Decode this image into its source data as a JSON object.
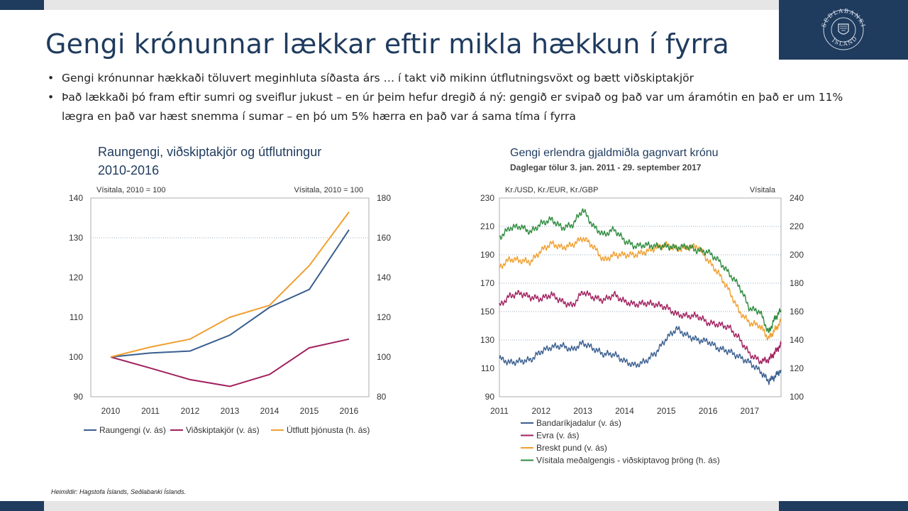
{
  "slide": {
    "title": "Gengi krónunnar lækkar eftir mikla hækkun í fyrra",
    "bullets": [
      "Gengi krónunnar hækkaði töluvert meginhluta síðasta árs … í takt við mikinn útflutningsvöxt og bætt viðskiptakjör",
      "Það lækkaði þó fram eftir sumri og sveiflur jukust – en úr þeim hefur dregið á ný: gengið er svipað og það var um áramótin en það er um 11% lægra en það var hæst snemma í sumar – en þó um 5% hærra en það var á sama tíma í fyrra"
    ],
    "bullet_symbol": "•",
    "source": "Heimildir: Hagstofa Íslands, Seðlabanki Íslands.",
    "logo": {
      "name": "sedlabanki-islands-seal",
      "text_top": "SEÐLABANKI",
      "text_bottom": "ÍSLANDS"
    },
    "colors": {
      "navy": "#1f3b5e",
      "grey_bar": "#e6e6e6"
    }
  },
  "chart_data": [
    {
      "type": "line",
      "title": "Raungengi, viðskiptakjör og útflutningur",
      "subtitle": "2010-2016",
      "ylabel_left": "Vísitala, 2010 = 100",
      "ylabel_right": "Vísitala, 2010 = 100",
      "x": [
        2010,
        2011,
        2012,
        2013,
        2014,
        2015,
        2016
      ],
      "ylim_left": [
        90,
        140
      ],
      "yticks_left": [
        90,
        100,
        110,
        120,
        130,
        140
      ],
      "ylim_right": [
        80,
        180
      ],
      "yticks_right": [
        80,
        100,
        120,
        140,
        160,
        180
      ],
      "series": [
        {
          "name": "Raungengi (v. ás)",
          "axis": "left",
          "color": "#3a5f8f",
          "values": [
            100,
            101,
            101.5,
            105.5,
            112.5,
            117,
            132
          ]
        },
        {
          "name": "Viðskiptakjör (v. ás)",
          "axis": "left",
          "color": "#a0205f",
          "values": [
            100,
            97.2,
            94.3,
            92.6,
            95.6,
            102.3,
            104.5
          ]
        },
        {
          "name": "Útflutt þjónusta (h. ás)",
          "axis": "right",
          "color": "#f0a030",
          "values": [
            100,
            105,
            109,
            120,
            126,
            146,
            173
          ]
        }
      ],
      "legend_position": "bottom",
      "grid": "dotted at 130 (left axis) / 160 (right axis)"
    },
    {
      "type": "line",
      "title": "Gengi erlendra gjaldmiðla gagnvart krónu",
      "subtitle": "Daglegar tölur 3. jan. 2011 - 29. september 2017",
      "ylabel_left": "Kr./USD, Kr./EUR, Kr./GBP",
      "ylabel_right": "Vísitala",
      "x_ticks": [
        "2011",
        "2012",
        "2013",
        "2014",
        "2015",
        "2016",
        "2017"
      ],
      "xlim": [
        2011,
        2017.75
      ],
      "ylim_left": [
        90,
        230
      ],
      "yticks_left": [
        90,
        110,
        130,
        150,
        170,
        190,
        210,
        230
      ],
      "ylim_right": [
        100,
        240
      ],
      "yticks_right": [
        100,
        120,
        140,
        160,
        180,
        200,
        220,
        240
      ],
      "series": [
        {
          "name": "Bandaríkjadalur (v. ás)",
          "axis": "left",
          "color": "#3a5f8f",
          "x": [
            2011,
            2011.25,
            2011.5,
            2011.75,
            2012,
            2012.25,
            2012.5,
            2012.75,
            2013,
            2013.25,
            2013.5,
            2013.75,
            2014,
            2014.25,
            2014.5,
            2014.75,
            2015,
            2015.25,
            2015.5,
            2015.75,
            2016,
            2016.25,
            2016.5,
            2016.75,
            2017,
            2017.25,
            2017.45,
            2017.6,
            2017.75
          ],
          "values": [
            117,
            114,
            115,
            116,
            122,
            125,
            126,
            123,
            128,
            124,
            120,
            120,
            115,
            112,
            115,
            121,
            131,
            138,
            133,
            130,
            129,
            124,
            122,
            118,
            114,
            108,
            101,
            104,
            109
          ]
        },
        {
          "name": "Evra (v. ás)",
          "axis": "left",
          "color": "#a0205f",
          "x": [
            2011,
            2011.25,
            2011.5,
            2011.75,
            2012,
            2012.25,
            2012.5,
            2012.75,
            2013,
            2013.25,
            2013.5,
            2013.75,
            2014,
            2014.25,
            2014.5,
            2014.75,
            2015,
            2015.25,
            2015.5,
            2015.75,
            2016,
            2016.25,
            2016.5,
            2016.75,
            2017,
            2017.25,
            2017.45,
            2017.6,
            2017.75
          ],
          "values": [
            154,
            161,
            163,
            160,
            159,
            162,
            157,
            154,
            164,
            160,
            158,
            162,
            157,
            155,
            156,
            155,
            153,
            148,
            147,
            147,
            142,
            141,
            139,
            131,
            120,
            115,
            116,
            121,
            127
          ]
        },
        {
          "name": "Breskt pund (v. ás)",
          "axis": "left",
          "color": "#f0a030",
          "x": [
            2011,
            2011.25,
            2011.5,
            2011.75,
            2012,
            2012.25,
            2012.5,
            2012.75,
            2013,
            2013.25,
            2013.5,
            2013.75,
            2014,
            2014.25,
            2014.5,
            2014.75,
            2015,
            2015.25,
            2015.5,
            2015.75,
            2016,
            2016.25,
            2016.5,
            2016.75,
            2017,
            2017.25,
            2017.45,
            2017.6,
            2017.75
          ],
          "values": [
            181,
            187,
            186,
            185,
            193,
            198,
            195,
            197,
            202,
            196,
            186,
            190,
            190,
            190,
            192,
            195,
            197,
            194,
            195,
            196,
            186,
            177,
            165,
            150,
            142,
            140,
            131,
            137,
            143
          ]
        },
        {
          "name": "Vísitala meðalgengis - viðskiptavog þröng (h. ás)",
          "axis": "right",
          "color": "#2e8b3e",
          "x": [
            2011,
            2011.25,
            2011.5,
            2011.75,
            2012,
            2012.25,
            2012.5,
            2012.75,
            2013,
            2013.25,
            2013.5,
            2013.75,
            2014,
            2014.25,
            2014.5,
            2014.75,
            2015,
            2015.25,
            2015.5,
            2015.75,
            2016,
            2016.25,
            2016.5,
            2016.75,
            2017,
            2017.25,
            2017.45,
            2017.6,
            2017.75
          ],
          "values": [
            212,
            219,
            220,
            216,
            222,
            225,
            219,
            221,
            232,
            220,
            214,
            218,
            210,
            206,
            207,
            206,
            206,
            205,
            206,
            203,
            202,
            196,
            187,
            178,
            162,
            160,
            145,
            155,
            161
          ]
        }
      ],
      "legend_position": "bottom",
      "grid": "dotted horizontal lines at 130, 150, 170, 190, 210 (left axis)"
    }
  ]
}
